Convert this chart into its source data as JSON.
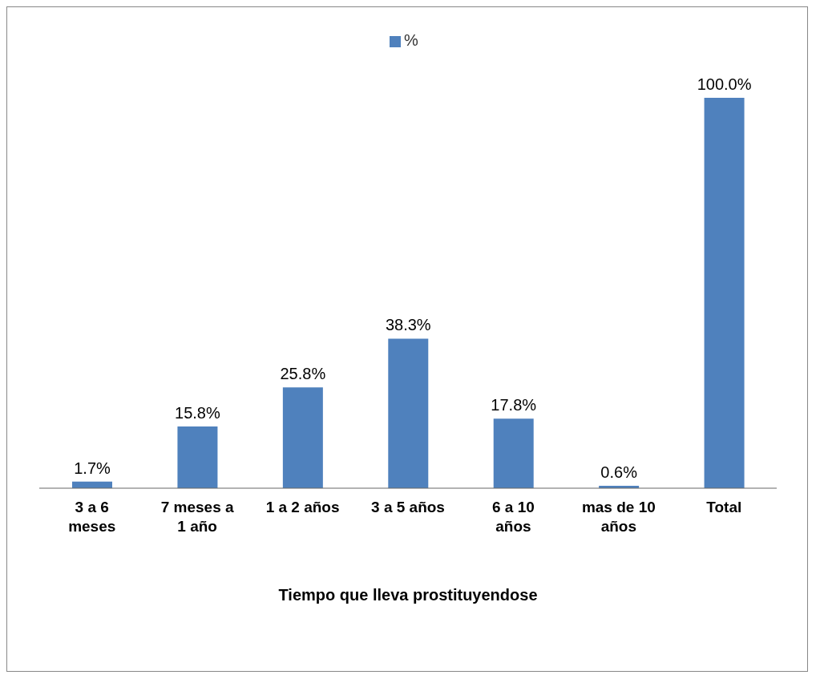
{
  "chart_data": {
    "type": "bar",
    "xlabel": "Tiempo que lleva prostituyendose",
    "categories": [
      "3 a 6 meses",
      "7 meses a 1 año",
      "1 a 2 años",
      "3 a 5 años",
      "6 a 10 años",
      "mas de 10 años",
      "Total"
    ],
    "series": [
      {
        "name": "%",
        "color": "#4f81bd",
        "values": [
          1.7,
          15.8,
          25.8,
          38.3,
          17.8,
          0.6,
          100
        ],
        "value_labels": [
          "1.7%",
          "15.8%",
          "25.8%",
          "38.3%",
          "17.8%",
          "0.6%",
          "100.0%"
        ]
      }
    ],
    "legend": "top",
    "grid": false
  }
}
